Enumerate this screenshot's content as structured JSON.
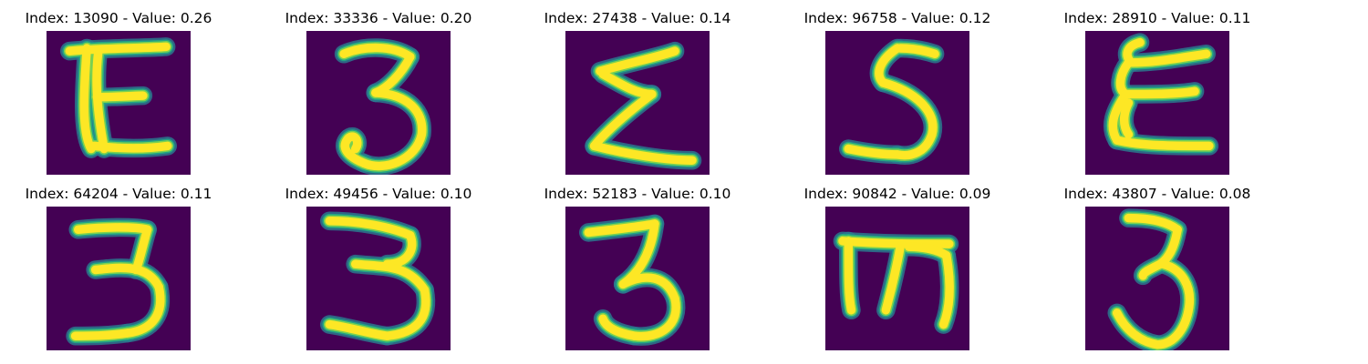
{
  "colors": {
    "background": "#440154",
    "stroke_outer": "#2a788e",
    "stroke_mid": "#22a884",
    "stroke_inner": "#7ad151",
    "stroke_core": "#fde725"
  },
  "panels": [
    {
      "title": "Index: 13090 - Value: 0.26",
      "glyph": "E-open"
    },
    {
      "title": "Index: 33336 - Value: 0.20",
      "glyph": "3-loop"
    },
    {
      "title": "Index: 27438 - Value: 0.14",
      "glyph": "sigma"
    },
    {
      "title": "Index: 96758 - Value: 0.12",
      "glyph": "5"
    },
    {
      "title": "Index: 28910 - Value: 0.11",
      "glyph": "epsilon-stacked"
    },
    {
      "title": "Index: 64204 - Value: 0.11",
      "glyph": "3-flat-top"
    },
    {
      "title": "Index: 49456 - Value: 0.10",
      "glyph": "3-wide"
    },
    {
      "title": "Index: 52183 - Value: 0.10",
      "glyph": "3-z-top"
    },
    {
      "title": "Index: 90842 - Value: 0.09",
      "glyph": "m-comb"
    },
    {
      "title": "Index: 43807 - Value: 0.08",
      "glyph": "3-hook"
    }
  ]
}
